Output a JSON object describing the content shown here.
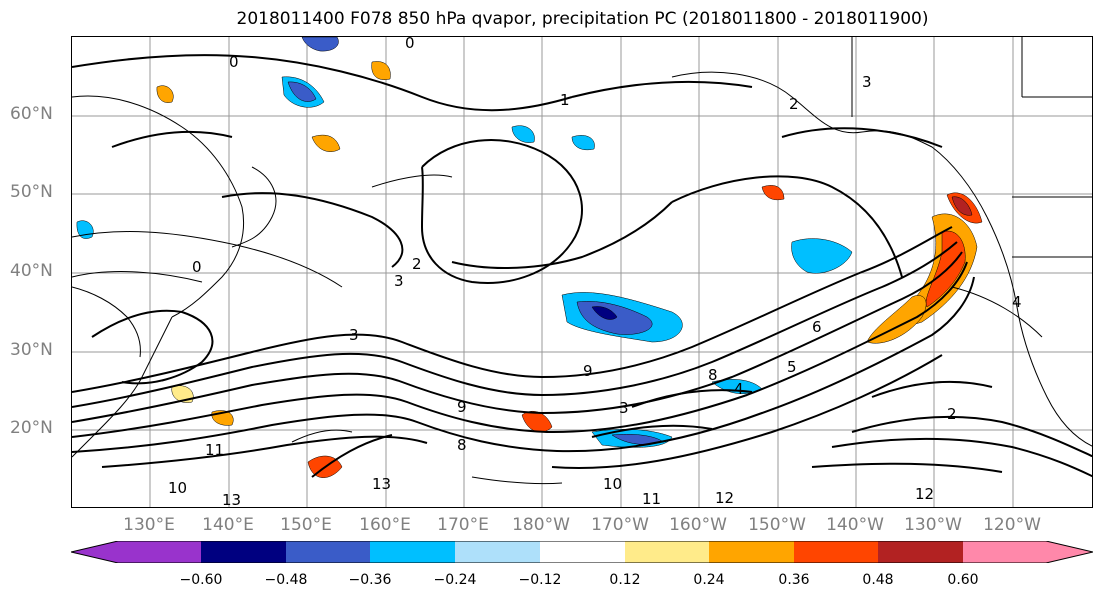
{
  "title": "2018011400 F078 850 hPa qvapor, precipitation PC (2018011800 - 2018011900)",
  "lat_labels": [
    "60°N",
    "50°N",
    "40°N",
    "30°N",
    "20°N"
  ],
  "lon_labels": [
    "130°E",
    "140°E",
    "150°E",
    "160°E",
    "170°E",
    "180°W",
    "170°W",
    "160°W",
    "150°W",
    "140°W",
    "130°W",
    "120°W"
  ],
  "contour_labels": [
    "0",
    "0",
    "0",
    "1",
    "2",
    "2",
    "2",
    "3",
    "3",
    "3",
    "3",
    "4",
    "4",
    "5",
    "6",
    "8",
    "8",
    "9",
    "9",
    "10",
    "10",
    "11",
    "11",
    "12",
    "12",
    "13",
    "13"
  ],
  "colorbar": {
    "tick_labels": [
      "−0.60",
      "−0.48",
      "−0.36",
      "−0.24",
      "−0.12",
      "0.12",
      "0.24",
      "0.36",
      "0.48",
      "0.60"
    ],
    "colors": [
      "#9933CC",
      "#000080",
      "#3A5CC8",
      "#00BFFF",
      "#AEE0FA",
      "#FFFFFF",
      "#FFEB8A",
      "#FFA500",
      "#FF4500",
      "#B22222",
      "#FF88AA"
    ]
  }
}
